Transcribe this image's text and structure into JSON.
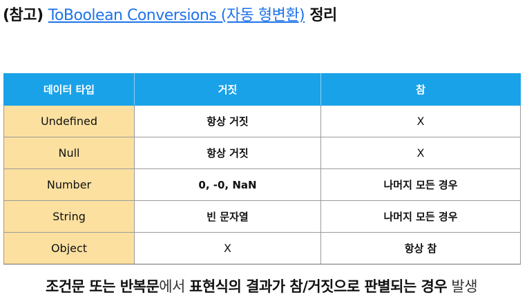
{
  "title": {
    "prefix": "(참고) ",
    "link": "ToBoolean Conversions (자동 형변환)",
    "suffix": " 정리"
  },
  "table": {
    "headers": [
      "데이터 타입",
      "거짓",
      "참"
    ],
    "rows": [
      {
        "type": "Undefined",
        "falsy": "항상 거짓",
        "truthy": "X"
      },
      {
        "type": "Null",
        "falsy": "항상 거짓",
        "truthy": "X"
      },
      {
        "type": "Number",
        "falsy": "0, -0, NaN",
        "truthy": "나머지 모든 경우"
      },
      {
        "type": "String",
        "falsy": "빈 문자열",
        "truthy": "나머지 모든 경우"
      },
      {
        "type": "Object",
        "falsy": "X",
        "truthy": "항상 참"
      }
    ]
  },
  "footer": {
    "part1": "조건문 또는 반복문",
    "part2": "에서 ",
    "part3": "표현식의 결과가 참/거짓으로 판별되는 경우",
    "part4": " 발생"
  }
}
